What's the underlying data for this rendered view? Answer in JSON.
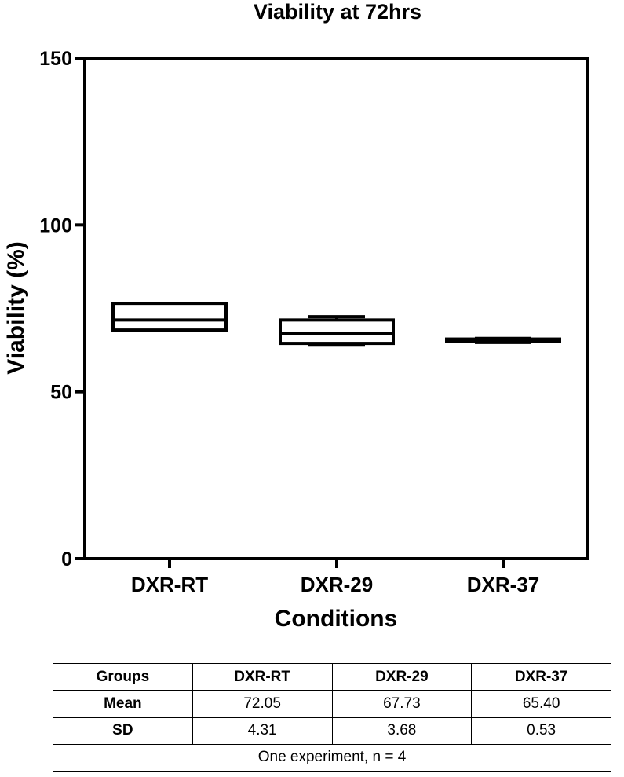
{
  "chart_data": {
    "type": "box",
    "title": "Viability at 72hrs",
    "xlabel": "Conditions",
    "ylabel": "Viability (%)",
    "ylim": [
      0,
      150
    ],
    "yticks": [
      0,
      50,
      100,
      150
    ],
    "grid": false,
    "categories": [
      "DXR-RT",
      "DXR-29",
      "DXR-37"
    ],
    "boxes": [
      {
        "category": "DXR-RT",
        "min": 68.5,
        "q1": 68.5,
        "median": 71.5,
        "q3": 76.5,
        "max": 76.5
      },
      {
        "category": "DXR-29",
        "min": 64.0,
        "q1": 64.5,
        "median": 67.5,
        "q3": 71.5,
        "max": 72.5
      },
      {
        "category": "DXR-37",
        "min": 64.8,
        "q1": 65.0,
        "median": 65.4,
        "q3": 65.8,
        "max": 66.0
      }
    ]
  },
  "table": {
    "header": [
      "Groups",
      "DXR-RT",
      "DXR-29",
      "DXR-37"
    ],
    "rows": [
      {
        "label": "Mean",
        "values": [
          "72.05",
          "67.73",
          "65.40"
        ]
      },
      {
        "label": "SD",
        "values": [
          "4.31",
          "3.68",
          "0.53"
        ]
      }
    ],
    "note": "One experiment, n = 4"
  }
}
